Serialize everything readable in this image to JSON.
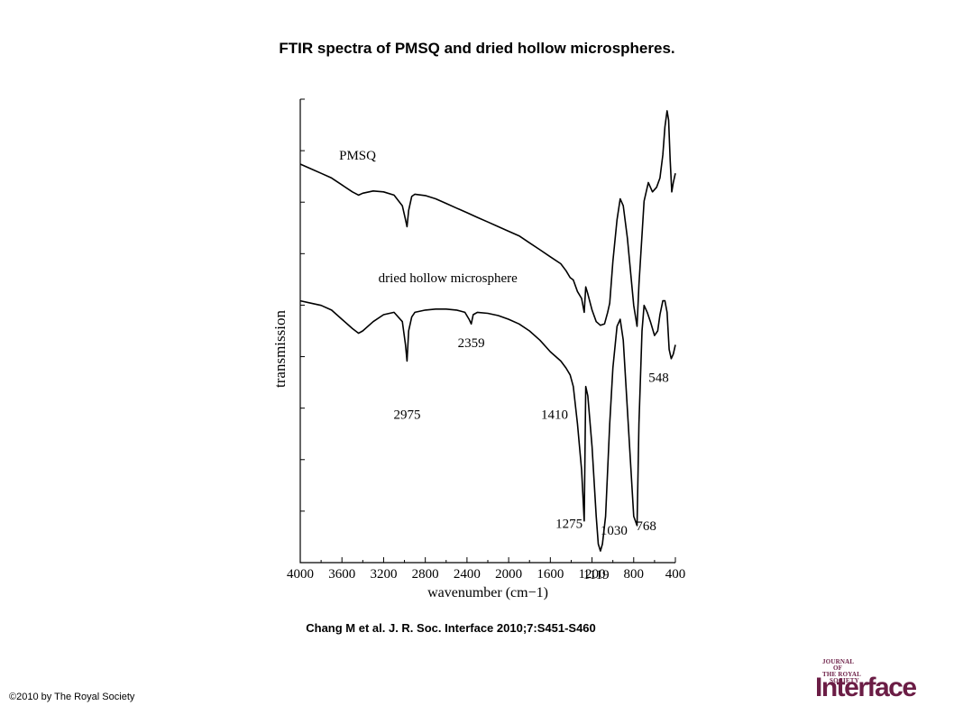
{
  "slide": {
    "title": "FTIR spectra of PMSQ and dried hollow microspheres.",
    "citation": "Chang M et al. J. R. Soc. Interface 2010;7:S451-S460",
    "copyright": "©2010 by The Royal Society",
    "logo": {
      "line1": "JOURNAL",
      "line2": "OF",
      "line3": "THE ROYAL",
      "line4": "SOCIETY",
      "big": "Interface"
    }
  },
  "chart_data": {
    "type": "line",
    "xlabel": "wavenumber (cm−1)",
    "ylabel": "transmission",
    "xlim": [
      4000,
      400
    ],
    "x_reversed": true,
    "x_ticks": [
      4000,
      3600,
      3200,
      2800,
      2400,
      2000,
      1600,
      1200,
      800,
      400
    ],
    "y_ticks_labeled": false,
    "grid": false,
    "series": [
      {
        "name": "PMSQ",
        "color": "#000000",
        "points": [
          [
            4000,
            0.86
          ],
          [
            3900,
            0.85
          ],
          [
            3800,
            0.84
          ],
          [
            3700,
            0.83
          ],
          [
            3600,
            0.815
          ],
          [
            3500,
            0.8
          ],
          [
            3440,
            0.793
          ],
          [
            3400,
            0.797
          ],
          [
            3300,
            0.802
          ],
          [
            3200,
            0.8
          ],
          [
            3100,
            0.793
          ],
          [
            3020,
            0.77
          ],
          [
            2990,
            0.74
          ],
          [
            2975,
            0.725
          ],
          [
            2960,
            0.76
          ],
          [
            2930,
            0.79
          ],
          [
            2900,
            0.795
          ],
          [
            2800,
            0.792
          ],
          [
            2700,
            0.785
          ],
          [
            2600,
            0.775
          ],
          [
            2500,
            0.765
          ],
          [
            2400,
            0.755
          ],
          [
            2300,
            0.745
          ],
          [
            2200,
            0.735
          ],
          [
            2100,
            0.725
          ],
          [
            2000,
            0.715
          ],
          [
            1900,
            0.705
          ],
          [
            1800,
            0.69
          ],
          [
            1700,
            0.675
          ],
          [
            1600,
            0.66
          ],
          [
            1500,
            0.645
          ],
          [
            1450,
            0.63
          ],
          [
            1410,
            0.615
          ],
          [
            1380,
            0.61
          ],
          [
            1340,
            0.585
          ],
          [
            1300,
            0.57
          ],
          [
            1275,
            0.54
          ],
          [
            1260,
            0.595
          ],
          [
            1240,
            0.58
          ],
          [
            1200,
            0.545
          ],
          [
            1160,
            0.52
          ],
          [
            1119,
            0.512
          ],
          [
            1080,
            0.515
          ],
          [
            1050,
            0.54
          ],
          [
            1030,
            0.56
          ],
          [
            1000,
            0.65
          ],
          [
            960,
            0.74
          ],
          [
            930,
            0.785
          ],
          [
            900,
            0.77
          ],
          [
            860,
            0.7
          ],
          [
            800,
            0.555
          ],
          [
            768,
            0.51
          ],
          [
            750,
            0.6
          ],
          [
            700,
            0.78
          ],
          [
            660,
            0.82
          ],
          [
            620,
            0.8
          ],
          [
            580,
            0.81
          ],
          [
            548,
            0.83
          ],
          [
            520,
            0.88
          ],
          [
            500,
            0.94
          ],
          [
            480,
            0.975
          ],
          [
            465,
            0.955
          ],
          [
            450,
            0.87
          ],
          [
            435,
            0.8
          ],
          [
            420,
            0.82
          ],
          [
            400,
            0.84
          ]
        ]
      },
      {
        "name": "dried hollow microsphere",
        "color": "#000000",
        "points": [
          [
            4000,
            0.565
          ],
          [
            3900,
            0.56
          ],
          [
            3800,
            0.555
          ],
          [
            3700,
            0.545
          ],
          [
            3600,
            0.525
          ],
          [
            3500,
            0.505
          ],
          [
            3440,
            0.495
          ],
          [
            3400,
            0.5
          ],
          [
            3300,
            0.52
          ],
          [
            3200,
            0.535
          ],
          [
            3100,
            0.54
          ],
          [
            3020,
            0.52
          ],
          [
            2990,
            0.47
          ],
          [
            2975,
            0.435
          ],
          [
            2960,
            0.5
          ],
          [
            2930,
            0.53
          ],
          [
            2900,
            0.54
          ],
          [
            2800,
            0.545
          ],
          [
            2700,
            0.547
          ],
          [
            2600,
            0.547
          ],
          [
            2500,
            0.545
          ],
          [
            2420,
            0.54
          ],
          [
            2380,
            0.525
          ],
          [
            2359,
            0.515
          ],
          [
            2340,
            0.535
          ],
          [
            2300,
            0.54
          ],
          [
            2200,
            0.538
          ],
          [
            2100,
            0.533
          ],
          [
            2000,
            0.525
          ],
          [
            1900,
            0.515
          ],
          [
            1800,
            0.5
          ],
          [
            1700,
            0.48
          ],
          [
            1600,
            0.455
          ],
          [
            1500,
            0.435
          ],
          [
            1450,
            0.42
          ],
          [
            1410,
            0.405
          ],
          [
            1380,
            0.38
          ],
          [
            1340,
            0.3
          ],
          [
            1300,
            0.2
          ],
          [
            1275,
            0.09
          ],
          [
            1260,
            0.38
          ],
          [
            1240,
            0.36
          ],
          [
            1200,
            0.25
          ],
          [
            1160,
            0.1
          ],
          [
            1140,
            0.04
          ],
          [
            1119,
            0.025
          ],
          [
            1100,
            0.04
          ],
          [
            1070,
            0.1
          ],
          [
            1050,
            0.2
          ],
          [
            1030,
            0.3
          ],
          [
            1000,
            0.42
          ],
          [
            960,
            0.51
          ],
          [
            930,
            0.525
          ],
          [
            900,
            0.48
          ],
          [
            860,
            0.33
          ],
          [
            800,
            0.1
          ],
          [
            768,
            0.08
          ],
          [
            750,
            0.3
          ],
          [
            720,
            0.5
          ],
          [
            700,
            0.555
          ],
          [
            670,
            0.54
          ],
          [
            640,
            0.52
          ],
          [
            600,
            0.49
          ],
          [
            570,
            0.5
          ],
          [
            548,
            0.535
          ],
          [
            520,
            0.565
          ],
          [
            500,
            0.565
          ],
          [
            480,
            0.54
          ],
          [
            460,
            0.46
          ],
          [
            440,
            0.44
          ],
          [
            420,
            0.45
          ],
          [
            400,
            0.47
          ]
        ]
      }
    ],
    "annotations": [
      {
        "text": "PMSQ",
        "x": 3450,
        "y": 0.87
      },
      {
        "text": "dried hollow microsphere",
        "x": 3250,
        "y": 0.605
      },
      {
        "text": "2975",
        "x": 2975,
        "y": 0.31
      },
      {
        "text": "2359",
        "x": 2359,
        "y": 0.465
      },
      {
        "text": "1410",
        "x": 1560,
        "y": 0.31
      },
      {
        "text": "548",
        "x": 560,
        "y": 0.39
      },
      {
        "text": "1275",
        "x": 1420,
        "y": 0.075
      },
      {
        "text": "1030",
        "x": 990,
        "y": 0.06
      },
      {
        "text": "768",
        "x": 680,
        "y": 0.07
      },
      {
        "text": "1119",
        "x": 1160,
        "y": -0.035
      }
    ]
  }
}
